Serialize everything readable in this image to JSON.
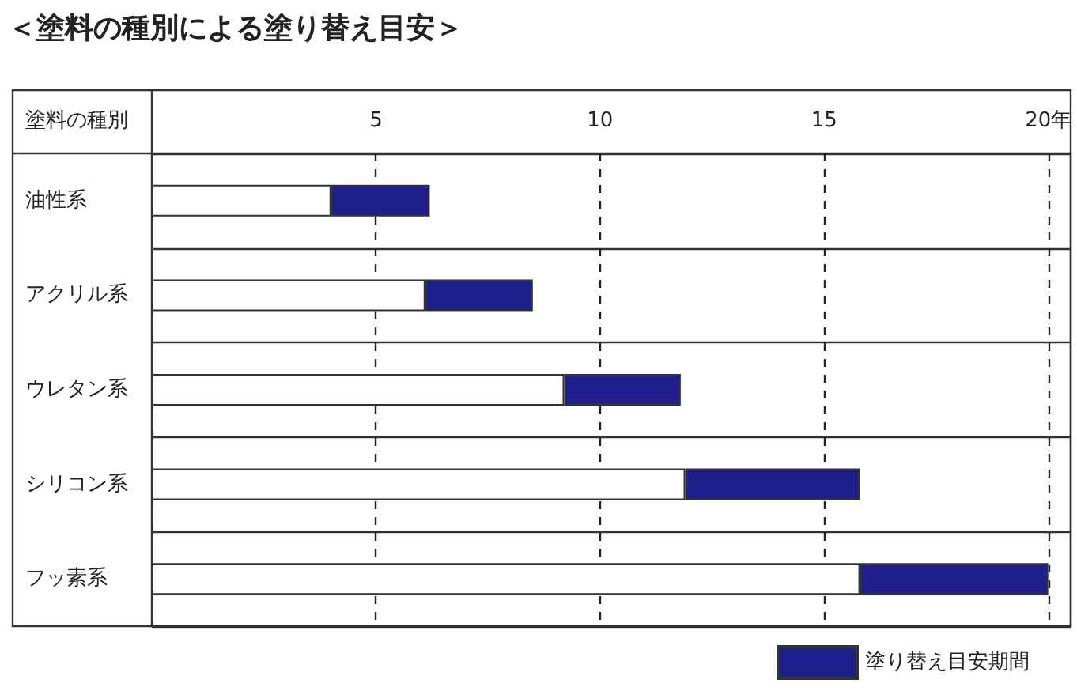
{
  "chart_data": {
    "type": "bar",
    "title": "＜塗料の種別による塗り替え目安＞",
    "ylabel": "塗料の種別",
    "categories": [
      "油性系",
      "アクリル系",
      "ウレタン系",
      "シリコン系",
      "フッ素系"
    ],
    "orientation": "horizontal",
    "stacked": true,
    "series": [
      {
        "color": "#ffffff",
        "values": [
          4,
          6.1,
          9.2,
          11.9,
          15.8
        ]
      },
      {
        "name": "塗り替え目安期間",
        "color": "#1e1f8a",
        "values": [
          2.2,
          2.4,
          2.6,
          3.9,
          4.2
        ]
      }
    ],
    "xlim": [
      0,
      20.5
    ],
    "xticks": [
      5,
      10,
      15,
      {
        "value": 20,
        "label": "20年"
      }
    ],
    "grid": "x",
    "legend": "bottom right"
  }
}
